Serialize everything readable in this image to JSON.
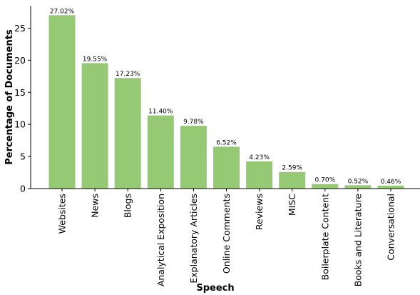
{
  "chart_data": {
    "type": "bar",
    "title": "",
    "xlabel": "Speech",
    "ylabel": "Percentage of Documents",
    "ylim": [
      0,
      28.5
    ],
    "yticks": [
      0,
      5,
      10,
      15,
      20,
      25
    ],
    "grid": false,
    "legend": "none",
    "bar_color": "#95c973",
    "categories": [
      "Websites",
      "News",
      "Blogs",
      "Analytical Exposition",
      "Explanatory Articles",
      "Online Comments",
      "Reviews",
      "MISC",
      "Boilerplate Content",
      "Books and Literature",
      "Conversational"
    ],
    "values": [
      27.02,
      19.55,
      17.23,
      11.4,
      9.78,
      6.52,
      4.23,
      2.59,
      0.7,
      0.52,
      0.46
    ],
    "data_labels": [
      "27.02%",
      "19.55%",
      "17.23%",
      "11.40%",
      "9.78%",
      "6.52%",
      "4.23%",
      "2.59%",
      "0.70%",
      "0.52%",
      "0.46%"
    ]
  }
}
